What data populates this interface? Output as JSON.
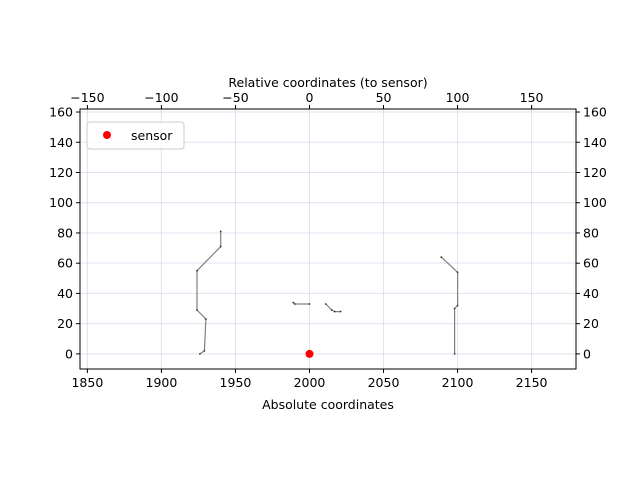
{
  "chart_data": {
    "type": "scatter",
    "xlabel": "Absolute coordinates",
    "secondary_xlabel": "Relative coordinates (to sensor)",
    "ylabel": "",
    "xlim": [
      1845,
      2180
    ],
    "ylim": [
      -10,
      162
    ],
    "xticks": [
      1850,
      1900,
      1950,
      2000,
      2050,
      2100,
      2150
    ],
    "secondary_xticks": [
      -150,
      -100,
      -50,
      0,
      50,
      100,
      150
    ],
    "secondary_xtick_labels": [
      "−150",
      "−100",
      "−50",
      "0",
      "50",
      "100",
      "150"
    ],
    "yticks": [
      0,
      20,
      40,
      60,
      80,
      100,
      120,
      140,
      160
    ],
    "grid": true,
    "legend": {
      "placement": "top-left",
      "entries": [
        {
          "label": "sensor",
          "color": "#ff0000",
          "marker": "circle"
        }
      ]
    },
    "sensor": {
      "name": "sensor",
      "x": 2000,
      "y": 0,
      "color": "#ff0000"
    },
    "segments": [
      {
        "name": "left-wall",
        "color": "#808080",
        "points": [
          [
            1926,
            0
          ],
          [
            1929,
            2
          ],
          [
            1930,
            23
          ],
          [
            1924,
            29
          ],
          [
            1924,
            55
          ],
          [
            1940,
            71
          ],
          [
            1940,
            81
          ]
        ]
      },
      {
        "name": "center-ledge-left",
        "color": "#808080",
        "points": [
          [
            1989,
            34
          ],
          [
            1990,
            33
          ],
          [
            2000,
            33
          ]
        ]
      },
      {
        "name": "center-ledge-right",
        "color": "#808080",
        "points": [
          [
            2011,
            33
          ],
          [
            2015,
            29
          ],
          [
            2017,
            28
          ],
          [
            2021,
            28
          ]
        ]
      },
      {
        "name": "right-wall",
        "color": "#808080",
        "points": [
          [
            2098,
            0
          ],
          [
            2098,
            30
          ],
          [
            2100,
            32
          ],
          [
            2100,
            54
          ],
          [
            2089,
            64
          ]
        ]
      }
    ]
  }
}
